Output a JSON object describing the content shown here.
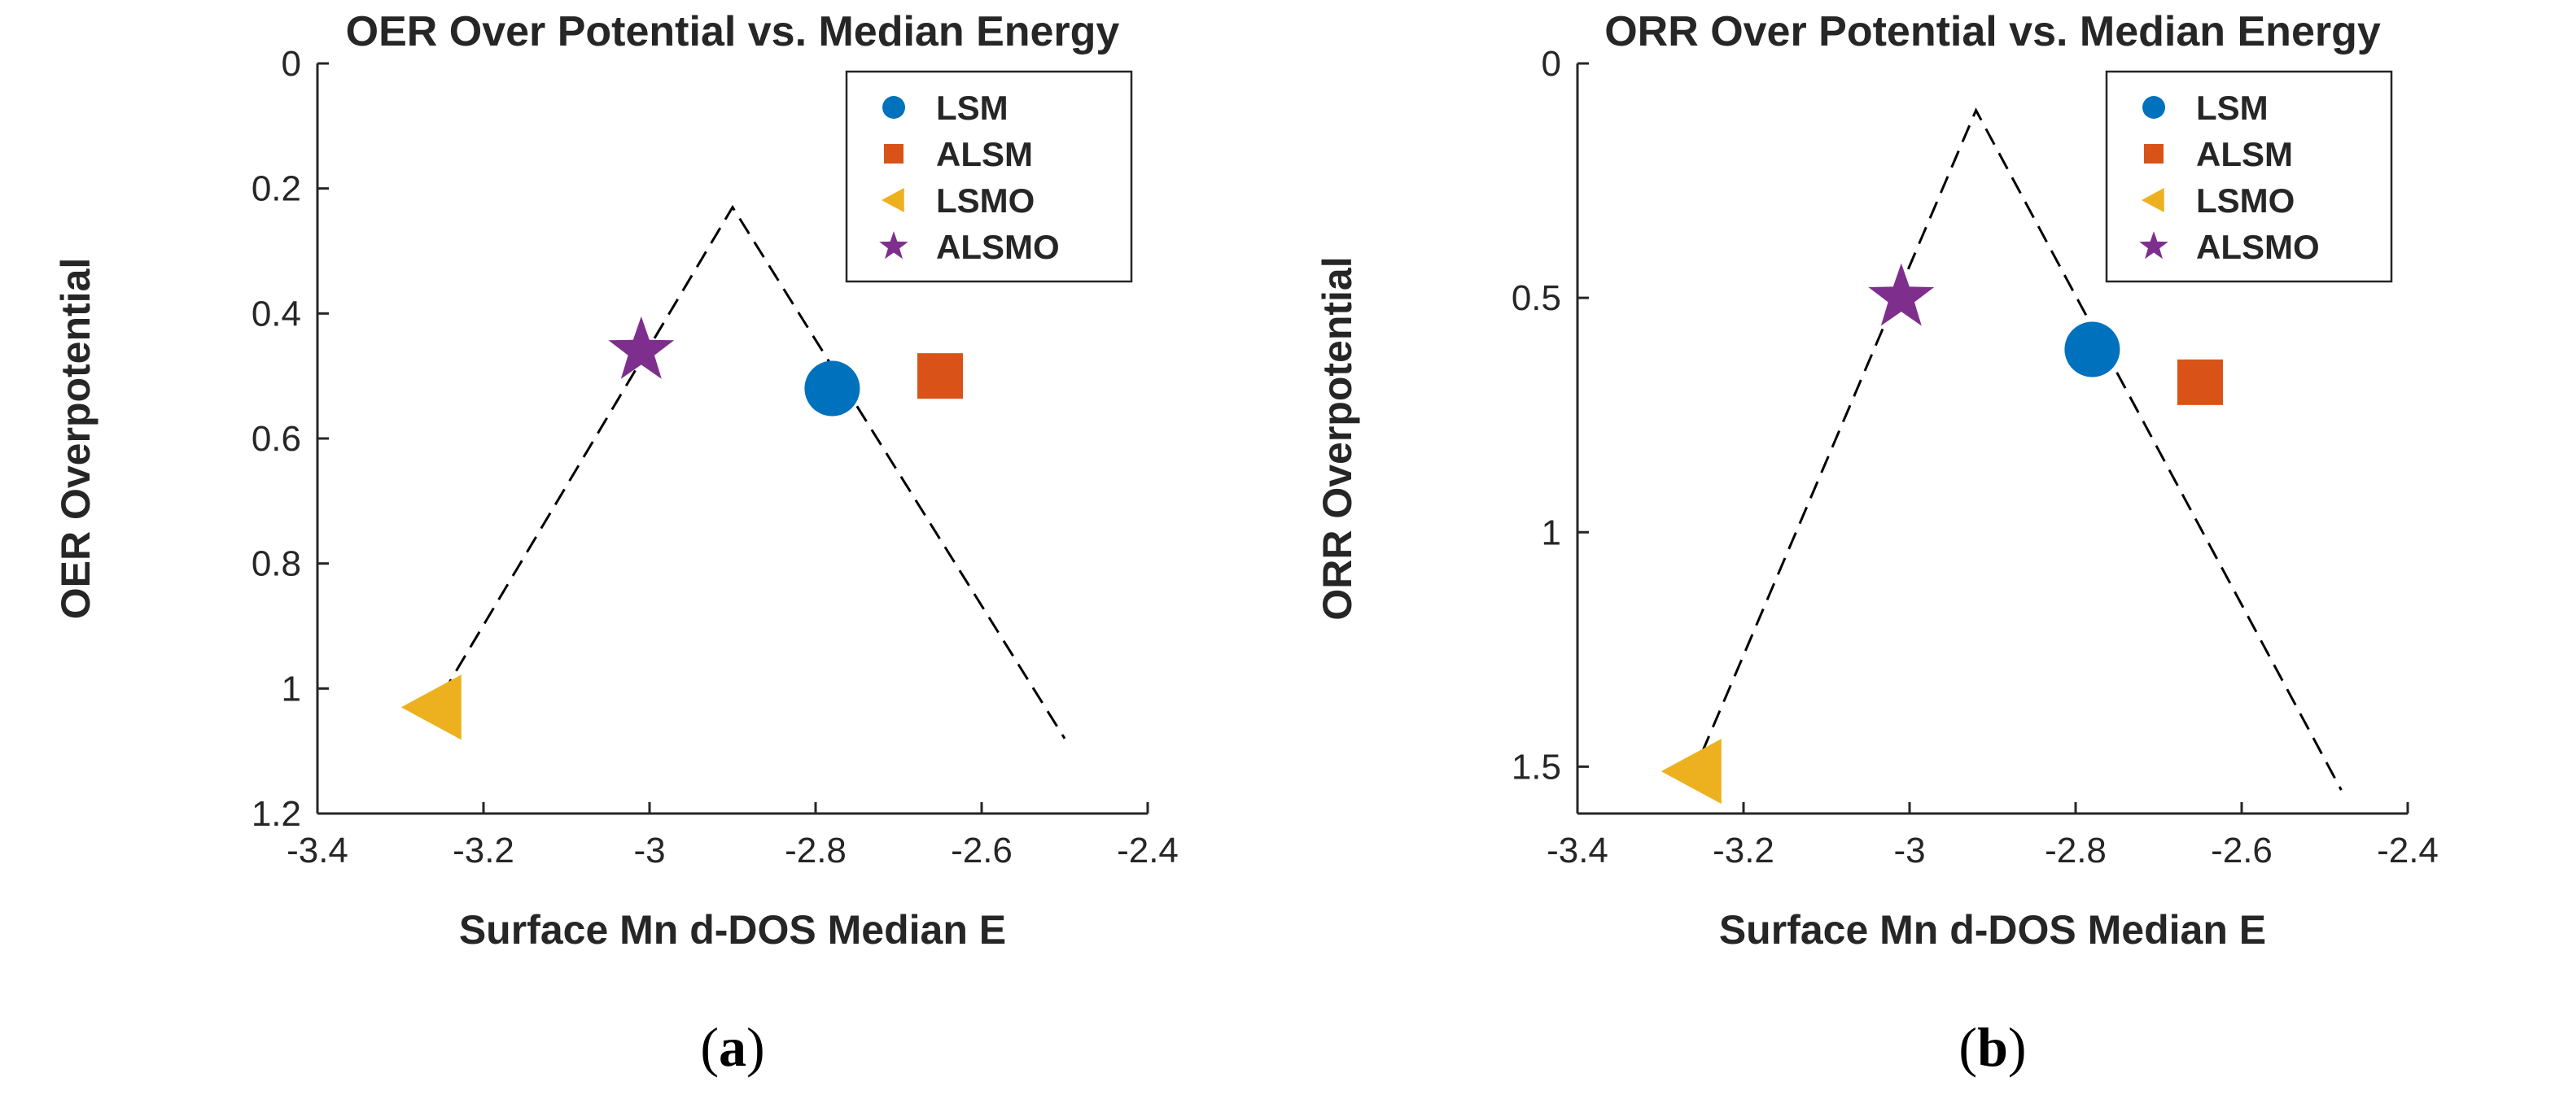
{
  "chart_data": [
    {
      "type": "scatter",
      "panel_label": {
        "open": "(",
        "letter": "a",
        "close": ")"
      },
      "title": "OER Over Potential vs. Median Energy",
      "xlabel": "Surface Mn d-DOS Median E",
      "ylabel": "OER Overpotential",
      "xlim": [
        -3.4,
        -2.4
      ],
      "ylim": [
        0,
        1.2
      ],
      "y_reversed": true,
      "xticks": [
        -3.4,
        -3.2,
        -3.0,
        -2.8,
        -2.6,
        -2.4
      ],
      "xtick_labels": [
        "-3.4",
        "-3.2",
        "-3",
        "-2.8",
        "-2.6",
        "-2.4"
      ],
      "yticks": [
        0,
        0.2,
        0.4,
        0.6,
        0.8,
        1.0,
        1.2
      ],
      "ytick_labels": [
        "0",
        "0.2",
        "0.4",
        "0.6",
        "0.8",
        "1",
        "1.2"
      ],
      "legend_position": "top-right",
      "series": [
        {
          "name": "LSM",
          "marker": "circle",
          "color": "#0072BD",
          "x": -2.78,
          "y": 0.52
        },
        {
          "name": "ALSM",
          "marker": "square",
          "color": "#D95319",
          "x": -2.65,
          "y": 0.5
        },
        {
          "name": "LSMO",
          "marker": "triangle-left",
          "color": "#EDB120",
          "x": -3.26,
          "y": 1.03
        },
        {
          "name": "ALSMO",
          "marker": "star",
          "color": "#7E2F8E",
          "x": -3.01,
          "y": 0.46
        }
      ],
      "volcano_line": {
        "style": "dashed",
        "color": "#000000",
        "points": [
          [
            -3.25,
            1.01
          ],
          [
            -2.9,
            0.23
          ],
          [
            -2.5,
            1.08
          ]
        ]
      }
    },
    {
      "type": "scatter",
      "panel_label": {
        "open": "(",
        "letter": "b",
        "close": ")"
      },
      "title": "ORR Over Potential vs. Median Energy",
      "xlabel": "Surface Mn d-DOS Median E",
      "ylabel": "ORR Overpotential",
      "xlim": [
        -3.4,
        -2.4
      ],
      "ylim": [
        0,
        1.6
      ],
      "y_reversed": true,
      "xticks": [
        -3.4,
        -3.2,
        -3.0,
        -2.8,
        -2.6,
        -2.4
      ],
      "xtick_labels": [
        "-3.4",
        "-3.2",
        "-3",
        "-2.8",
        "-2.6",
        "-2.4"
      ],
      "yticks": [
        0,
        0.5,
        1.0,
        1.5
      ],
      "ytick_labels": [
        "0",
        "0.5",
        "1",
        "1.5"
      ],
      "legend_position": "top-right",
      "series": [
        {
          "name": "LSM",
          "marker": "circle",
          "color": "#0072BD",
          "x": -2.78,
          "y": 0.61
        },
        {
          "name": "ALSM",
          "marker": "square",
          "color": "#D95319",
          "x": -2.65,
          "y": 0.68
        },
        {
          "name": "LSMO",
          "marker": "triangle-left",
          "color": "#EDB120",
          "x": -3.26,
          "y": 1.51
        },
        {
          "name": "ALSMO",
          "marker": "star",
          "color": "#7E2F8E",
          "x": -3.01,
          "y": 0.5
        }
      ],
      "volcano_line": {
        "style": "dashed",
        "color": "#000000",
        "points": [
          [
            -3.25,
            1.47
          ],
          [
            -2.92,
            0.1
          ],
          [
            -2.48,
            1.55
          ]
        ]
      }
    }
  ]
}
